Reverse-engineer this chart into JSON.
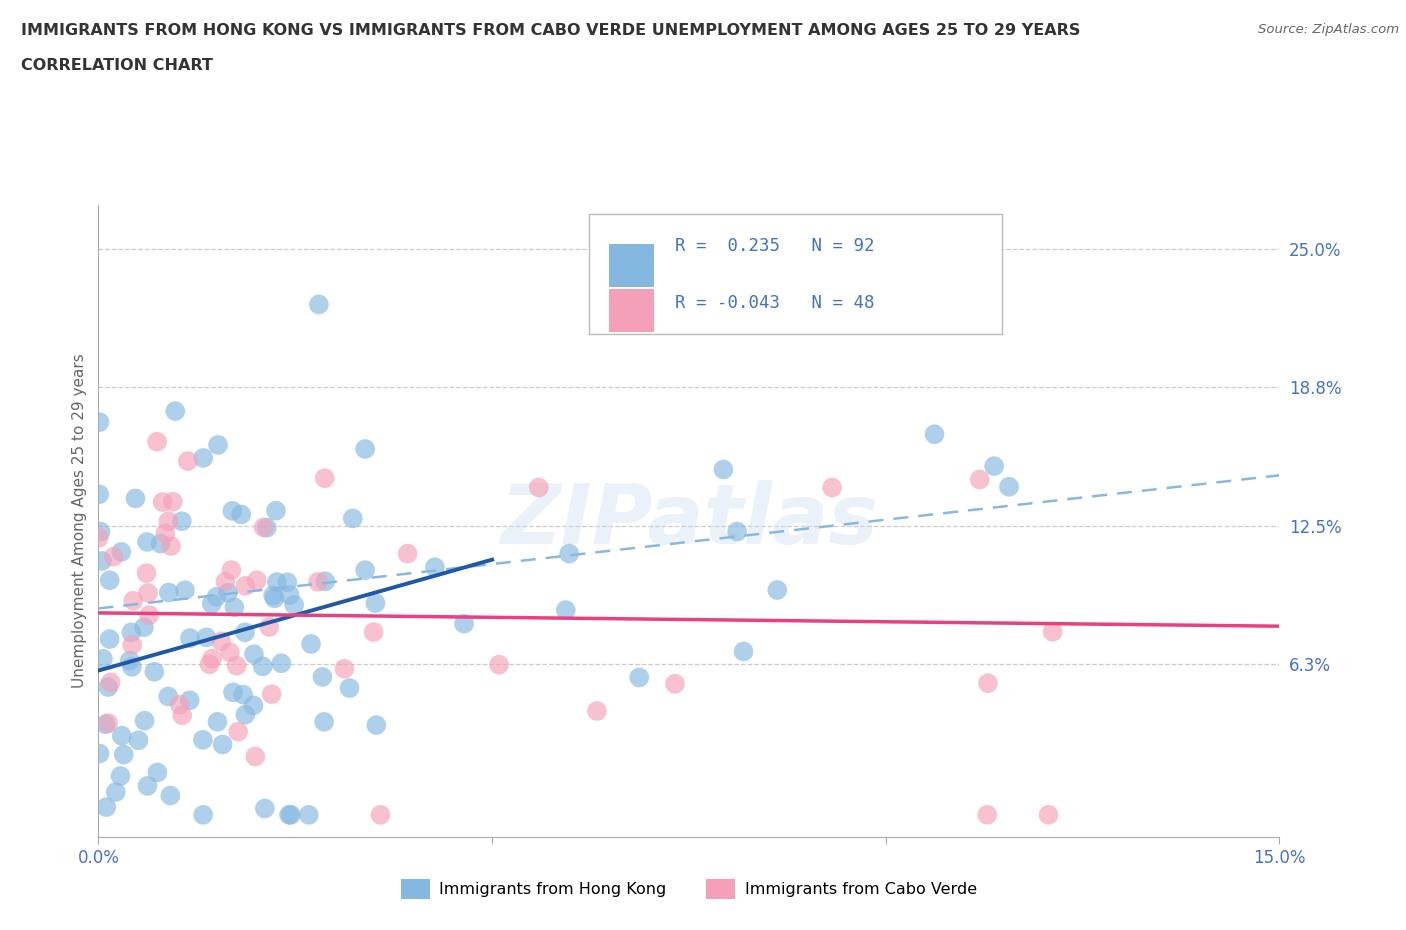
{
  "title_line1": "IMMIGRANTS FROM HONG KONG VS IMMIGRANTS FROM CABO VERDE UNEMPLOYMENT AMONG AGES 25 TO 29 YEARS",
  "title_line2": "CORRELATION CHART",
  "source": "Source: ZipAtlas.com",
  "ylabel": "Unemployment Among Ages 25 to 29 years",
  "xlim": [
    0.0,
    0.15
  ],
  "ylim": [
    -0.015,
    0.27
  ],
  "ytick_values": [
    0.063,
    0.125,
    0.188,
    0.25
  ],
  "ytick_labels": [
    "6.3%",
    "12.5%",
    "18.8%",
    "25.0%"
  ],
  "xtick_values": [
    0.0,
    0.05,
    0.1,
    0.15
  ],
  "xtick_labels": [
    "0.0%",
    "",
    "",
    "15.0%"
  ],
  "hk_color": "#85b8e0",
  "cv_color": "#f4a0b8",
  "hk_solid_color": "#2058a8",
  "hk_dash_color": "#88b8e0",
  "cv_line_color": "#e84080",
  "hk_R": 0.235,
  "hk_N": 92,
  "cv_R": -0.043,
  "cv_N": 48,
  "text_color": "#4472c4",
  "title_color": "#333333",
  "watermark": "ZIPatlas",
  "legend_label_hk": "Immigrants from Hong Kong",
  "legend_label_cv": "Immigrants from Cabo Verde"
}
